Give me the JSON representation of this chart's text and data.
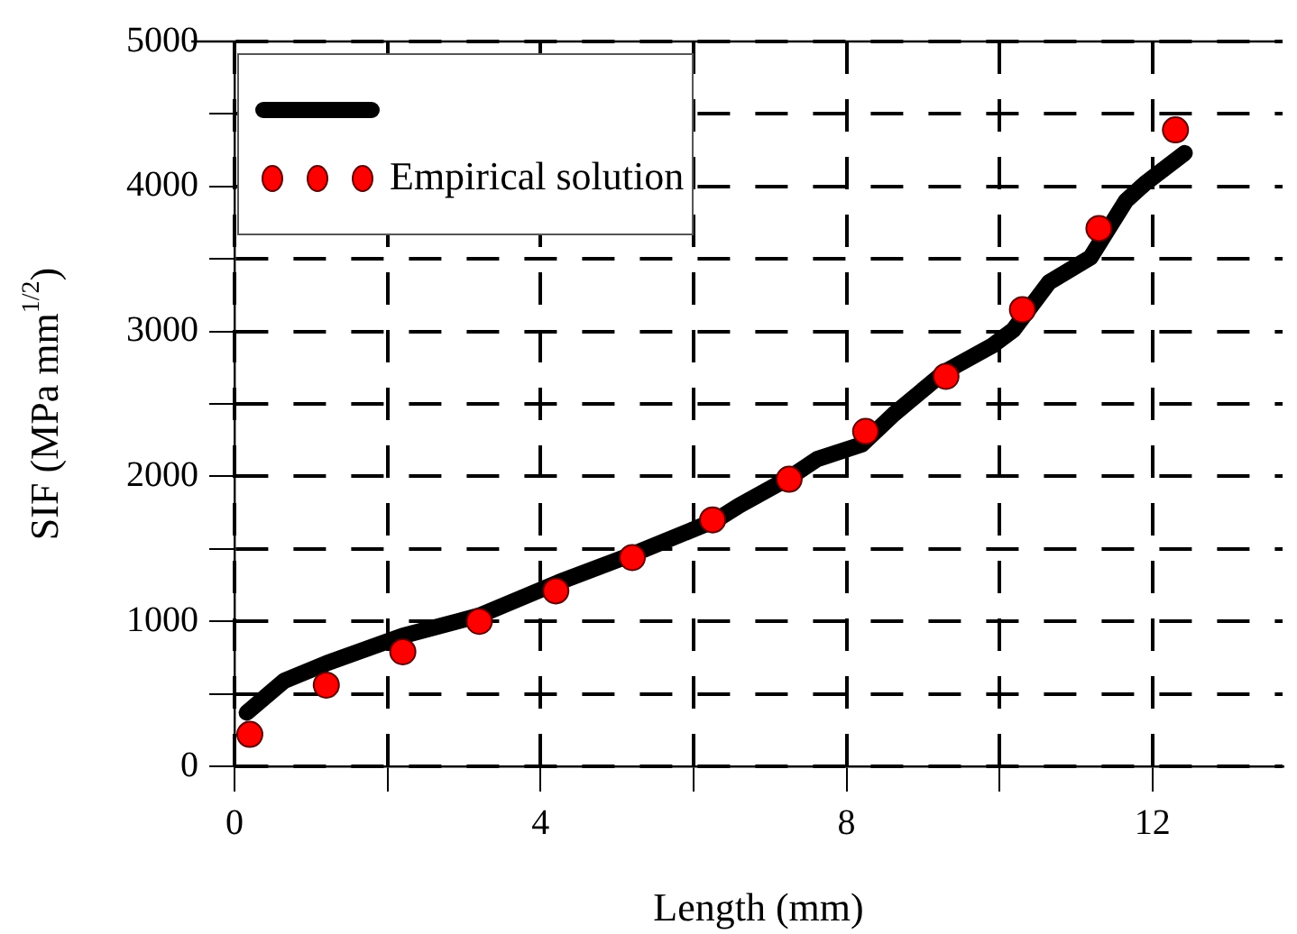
{
  "chart_data": {
    "type": "line",
    "xlabel": "Length (mm)",
    "ylabel": "SIF (MPa mm$^{1/2}$)",
    "xlim": [
      0,
      13.7
    ],
    "xticks": [
      0,
      {
        "value": 2,
        "label": null
      },
      4,
      {
        "value": 6,
        "label": null
      },
      8,
      {
        "value": 10,
        "label": null
      },
      12
    ],
    "ylim": [
      0,
      5000
    ],
    "yticks": [
      0,
      {
        "value": 500,
        "label": null
      },
      1000,
      {
        "value": 1500,
        "label": null
      },
      2000,
      {
        "value": 2500,
        "label": null
      },
      3000,
      {
        "value": 3500,
        "label": null
      },
      4000,
      {
        "value": 4500,
        "label": null
      },
      5000
    ],
    "grid": true,
    "legend": "top left",
    "series": [
      {
        "color": "#000000",
        "marker": "none",
        "x": [
          0.16,
          0.65,
          1.2,
          2.2,
          3.2,
          4.24,
          5.24,
          6.3,
          6.6,
          7.25,
          7.62,
          8.2,
          8.62,
          9.28,
          9.9,
          10.18,
          10.65,
          11.19,
          11.65,
          11.9,
          12.42
        ],
        "values": [
          370,
          590,
          710,
          900,
          1040,
          1270,
          1470,
          1700,
          1800,
          1990,
          2120,
          2220,
          2430,
          2720,
          2900,
          3010,
          3340,
          3510,
          3900,
          4020,
          4230
        ]
      },
      {
        "type": "scatter",
        "name": "Empirical solution",
        "color": "#ff0000",
        "marker": "circle",
        "x": [
          0.2,
          1.2,
          2.2,
          3.2,
          4.2,
          5.2,
          6.25,
          7.25,
          8.25,
          9.3,
          10.3,
          11.3,
          12.3
        ],
        "values": [
          220,
          560,
          790,
          1000,
          1210,
          1440,
          1700,
          1980,
          2310,
          2690,
          3150,
          3710,
          4390
        ]
      }
    ]
  }
}
